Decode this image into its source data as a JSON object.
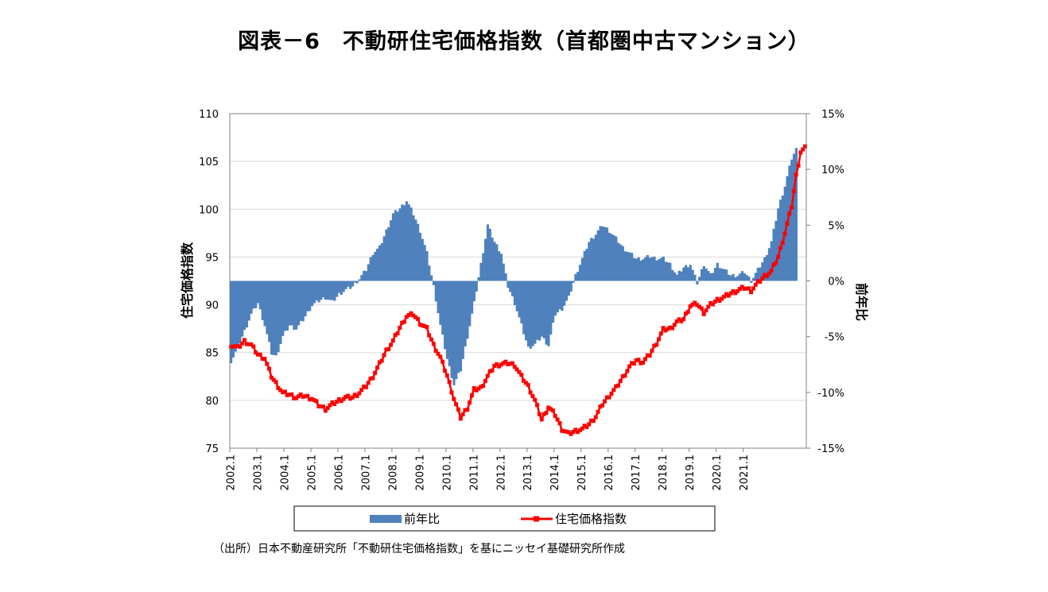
{
  "title": "図表－6　不動研住宅価格指数（首都圏中古マンション）",
  "source": "（出所）日本不動産研究所「不動研住宅価格指数」を基にニッセイ基礎研究所作成",
  "chart_data": {
    "type": "bar+line",
    "title": "図表－6　不動研住宅価格指数（首都圏中古マンション）",
    "y_left_label": "住宅価格指数",
    "y_right_label": "前年比",
    "y_left_range": [
      75,
      110
    ],
    "y_left_ticks": [
      "75",
      "80",
      "85",
      "90",
      "95",
      "100",
      "105",
      "110"
    ],
    "y_right_range": [
      -15,
      15
    ],
    "y_right_ticks": [
      "-15%",
      "-10%",
      "-5%",
      "0%",
      "5%",
      "10%",
      "15%"
    ],
    "x_tick_labels": [
      "2002.1",
      "2003.1",
      "2004.1",
      "2005.1",
      "2006.1",
      "2007.1",
      "2008.1",
      "2009.1",
      "2010.1",
      "2011.1",
      "2012.1",
      "2013.1",
      "2014.1",
      "2015.1",
      "2016.1",
      "2017.1",
      "2018.1",
      "2019.1",
      "2020.1",
      "2021.1"
    ],
    "legend_position": "bottom",
    "grid": true,
    "colors": {
      "bar": "#4f81bd",
      "line": "#ff0000",
      "grid": "#d9d9d9"
    },
    "series": [
      {
        "name": "前年比",
        "type": "bar",
        "axis": "right",
        "points": [
          [
            0,
            -7.2
          ],
          [
            3,
            -6.0
          ],
          [
            6,
            -4.5
          ],
          [
            9,
            -3.0
          ],
          [
            12,
            -2.0
          ],
          [
            15,
            -4.0
          ],
          [
            18,
            -6.5
          ],
          [
            20,
            -6.8
          ],
          [
            23,
            -5.0
          ],
          [
            26,
            -4.0
          ],
          [
            29,
            -4.3
          ],
          [
            32,
            -3.5
          ],
          [
            36,
            -2.2
          ],
          [
            39,
            -1.8
          ],
          [
            42,
            -1.5
          ],
          [
            45,
            -1.9
          ],
          [
            48,
            -1.2
          ],
          [
            51,
            -0.8
          ],
          [
            54,
            -0.5
          ],
          [
            57,
            0.2
          ],
          [
            60,
            1.0
          ],
          [
            63,
            2.5
          ],
          [
            66,
            3.0
          ],
          [
            69,
            4.5
          ],
          [
            72,
            6.0
          ],
          [
            75,
            6.5
          ],
          [
            78,
            7.2
          ],
          [
            81,
            6.0
          ],
          [
            84,
            4.5
          ],
          [
            87,
            2.5
          ],
          [
            90,
            -0.5
          ],
          [
            93,
            -4.0
          ],
          [
            96,
            -7.0
          ],
          [
            99,
            -9.3
          ],
          [
            102,
            -8.0
          ],
          [
            105,
            -5.0
          ],
          [
            108,
            -2.0
          ],
          [
            111,
            1.5
          ],
          [
            114,
            5.0
          ],
          [
            117,
            3.5
          ],
          [
            120,
            2.5
          ],
          [
            123,
            -0.5
          ],
          [
            126,
            -2.0
          ],
          [
            129,
            -4.0
          ],
          [
            132,
            -6.0
          ],
          [
            135,
            -5.7
          ],
          [
            138,
            -5.0
          ],
          [
            141,
            -5.8
          ],
          [
            144,
            -3.0
          ],
          [
            147,
            -2.5
          ],
          [
            150,
            -1.5
          ],
          [
            153,
            0.5
          ],
          [
            156,
            2.0
          ],
          [
            159,
            3.5
          ],
          [
            162,
            4.2
          ],
          [
            165,
            5.0
          ],
          [
            168,
            4.5
          ],
          [
            171,
            3.8
          ],
          [
            174,
            3.0
          ],
          [
            177,
            2.5
          ],
          [
            180,
            2.0
          ],
          [
            183,
            2.0
          ],
          [
            186,
            2.2
          ],
          [
            189,
            2.0
          ],
          [
            192,
            2.0
          ],
          [
            195,
            1.5
          ],
          [
            198,
            0.5
          ],
          [
            201,
            1.2
          ],
          [
            204,
            1.5
          ],
          [
            207,
            -0.2
          ],
          [
            210,
            1.5
          ],
          [
            213,
            0.5
          ],
          [
            216,
            1.5
          ],
          [
            219,
            1.0
          ],
          [
            222,
            0.5
          ],
          [
            225,
            0.5
          ],
          [
            228,
            0.8
          ],
          [
            231,
            0.0
          ],
          [
            234,
            1.0
          ],
          [
            237,
            2.0
          ],
          [
            240,
            3.5
          ],
          [
            243,
            6.5
          ],
          [
            246,
            8.5
          ],
          [
            249,
            11.0
          ],
          [
            251,
            11.8
          ]
        ]
      },
      {
        "name": "住宅価格指数",
        "type": "line",
        "axis": "left",
        "points": [
          [
            0,
            85.8
          ],
          [
            3,
            85.5
          ],
          [
            6,
            86.2
          ],
          [
            9,
            85.8
          ],
          [
            12,
            84.8
          ],
          [
            15,
            84.4
          ],
          [
            18,
            82.5
          ],
          [
            20,
            81.8
          ],
          [
            23,
            80.8
          ],
          [
            26,
            80.6
          ],
          [
            29,
            80.3
          ],
          [
            32,
            80.5
          ],
          [
            36,
            80.2
          ],
          [
            39,
            79.5
          ],
          [
            42,
            79.1
          ],
          [
            45,
            79.6
          ],
          [
            48,
            80.0
          ],
          [
            51,
            80.3
          ],
          [
            54,
            80.3
          ],
          [
            57,
            80.8
          ],
          [
            60,
            81.5
          ],
          [
            63,
            82.5
          ],
          [
            66,
            83.8
          ],
          [
            69,
            85.2
          ],
          [
            72,
            86.2
          ],
          [
            75,
            87.6
          ],
          [
            78,
            88.8
          ],
          [
            81,
            89.0
          ],
          [
            84,
            88.1
          ],
          [
            87,
            87.5
          ],
          [
            90,
            85.8
          ],
          [
            93,
            84.5
          ],
          [
            96,
            82.6
          ],
          [
            99,
            80.2
          ],
          [
            102,
            78.2
          ],
          [
            105,
            79.2
          ],
          [
            108,
            81.1
          ],
          [
            111,
            81.3
          ],
          [
            114,
            82.5
          ],
          [
            117,
            83.6
          ],
          [
            120,
            83.8
          ],
          [
            123,
            83.9
          ],
          [
            126,
            83.7
          ],
          [
            129,
            82.5
          ],
          [
            132,
            81.5
          ],
          [
            135,
            80.0
          ],
          [
            138,
            78.0
          ],
          [
            141,
            79.3
          ],
          [
            144,
            78.5
          ],
          [
            147,
            77.0
          ],
          [
            150,
            76.5
          ],
          [
            153,
            76.8
          ],
          [
            156,
            77.0
          ],
          [
            159,
            77.5
          ],
          [
            162,
            78.3
          ],
          [
            165,
            79.6
          ],
          [
            168,
            80.5
          ],
          [
            171,
            81.3
          ],
          [
            174,
            82.4
          ],
          [
            177,
            83.5
          ],
          [
            180,
            84.2
          ],
          [
            183,
            84.0
          ],
          [
            186,
            84.8
          ],
          [
            189,
            86.0
          ],
          [
            192,
            87.4
          ],
          [
            195,
            87.5
          ],
          [
            198,
            88.2
          ],
          [
            201,
            88.5
          ],
          [
            204,
            89.9
          ],
          [
            207,
            90.1
          ],
          [
            210,
            89.2
          ],
          [
            213,
            90.0
          ],
          [
            216,
            90.5
          ],
          [
            219,
            90.8
          ],
          [
            222,
            91.2
          ],
          [
            225,
            91.5
          ],
          [
            228,
            91.8
          ],
          [
            231,
            91.5
          ],
          [
            234,
            92.3
          ],
          [
            237,
            93.0
          ],
          [
            240,
            93.5
          ],
          [
            243,
            95.0
          ],
          [
            246,
            97.5
          ],
          [
            249,
            100.3
          ],
          [
            251,
            103.5
          ],
          [
            253,
            106.0
          ],
          [
            255,
            106.4
          ]
        ]
      }
    ],
    "x_index_range": [
      0,
      255
    ],
    "x_index_note": "x values are month indices (0 = 2002.1, 12 per year)"
  }
}
